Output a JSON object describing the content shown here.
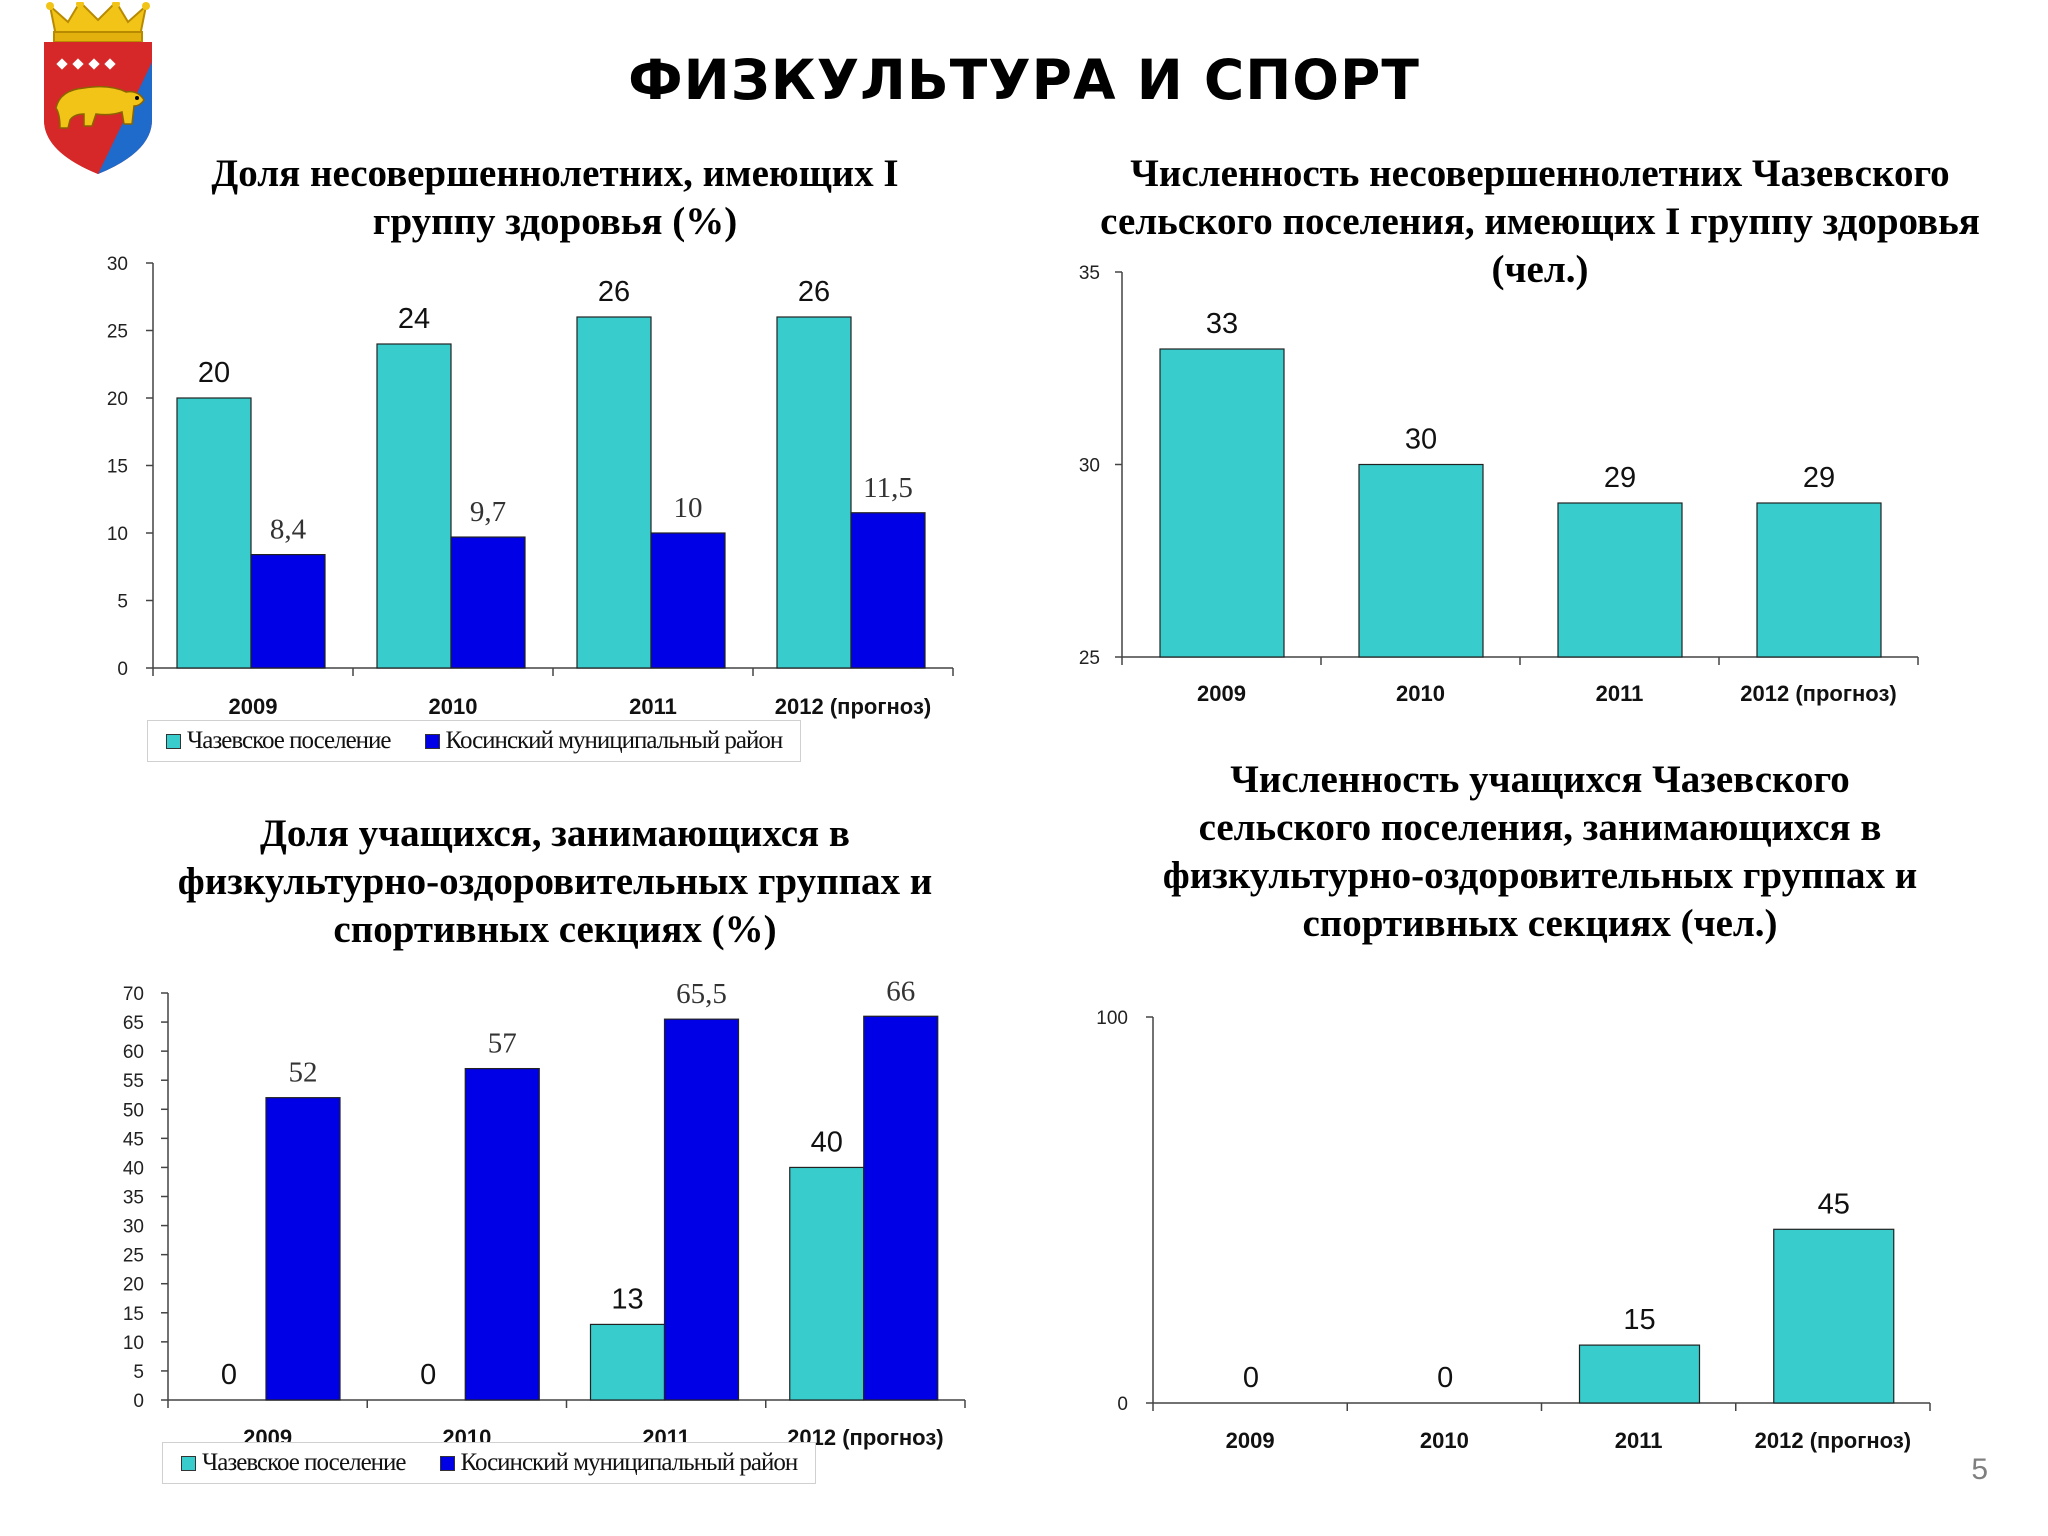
{
  "slide": {
    "title": "ФИЗКУЛЬТУРА И СПОРТ",
    "page_number": "5",
    "emblem_icon": "coat-of-arms-bear-icon"
  },
  "colors": {
    "teal": "#38CCCC",
    "blue": "#0000E6",
    "emblem_red": "#D62828",
    "emblem_blue": "#1E6BCB",
    "emblem_gold": "#F2C418"
  },
  "chart_data": [
    {
      "id": "chart1",
      "type": "bar",
      "title_lines": [
        "Доля несовершеннолетних, имеющих I",
        "группу здоровья (%)"
      ],
      "categories": [
        "2009",
        "2010",
        "2011",
        "2012 (прогноз)"
      ],
      "ylim": [
        0,
        30
      ],
      "yticks": [
        0,
        5,
        10,
        15,
        20,
        25,
        30
      ],
      "grid": false,
      "legend": "bottom",
      "series": [
        {
          "name": "Чазевское поселение",
          "color": "#38CCCC",
          "values": [
            20,
            24,
            26,
            26
          ],
          "labels": [
            "20",
            "24",
            "26",
            "26"
          ],
          "label_font": "sans"
        },
        {
          "name": "Косинский муниципальный район",
          "color": "#0000E6",
          "values": [
            8.4,
            9.7,
            10,
            11.5
          ],
          "labels": [
            "8,4",
            "9,7",
            "10",
            "11,5"
          ],
          "label_font": "serif"
        }
      ]
    },
    {
      "id": "chart2",
      "type": "bar",
      "title_lines": [
        "Численность несовершеннолетних Чазевского",
        "сельского поселения, имеющих I группу здоровья",
        "(чел.)"
      ],
      "categories": [
        "2009",
        "2010",
        "2011",
        "2012 (прогноз)"
      ],
      "ylim": [
        25,
        35
      ],
      "yticks": [
        25,
        30,
        35
      ],
      "grid": false,
      "legend": "none",
      "series": [
        {
          "name": "",
          "color": "#38CCCC",
          "values": [
            33,
            30,
            29,
            29
          ],
          "labels": [
            "33",
            "30",
            "29",
            "29"
          ],
          "label_font": "sans"
        }
      ]
    },
    {
      "id": "chart3",
      "type": "bar",
      "title_lines": [
        "Доля учащихся, занимающихся в",
        "физкультурно-оздоровительных группах и",
        "спортивных секциях (%)"
      ],
      "categories": [
        "2009",
        "2010",
        "2011",
        "2012 (прогноз)"
      ],
      "ylim": [
        0,
        70
      ],
      "yticks": [
        0,
        5,
        10,
        15,
        20,
        25,
        30,
        35,
        40,
        45,
        50,
        55,
        60,
        65,
        70
      ],
      "grid": false,
      "legend": "bottom",
      "series": [
        {
          "name": "Чазевское поселение",
          "color": "#38CCCC",
          "values": [
            0,
            0,
            13,
            40
          ],
          "labels": [
            "0",
            "0",
            "13",
            "40"
          ],
          "label_font": "sans"
        },
        {
          "name": "Косинский муниципальный район",
          "color": "#0000E6",
          "values": [
            52,
            57,
            65.5,
            66
          ],
          "labels": [
            "52",
            "57",
            "65,5",
            "66"
          ],
          "label_font": "serif"
        }
      ]
    },
    {
      "id": "chart4",
      "type": "bar",
      "title_lines": [
        "Численность учащихся Чазевского",
        "сельского поселения, занимающихся в",
        "физкультурно-оздоровительных группах и",
        "спортивных секциях (чел.)"
      ],
      "categories": [
        "2009",
        "2010",
        "2011",
        "2012 (прогноз)"
      ],
      "ylim": [
        0,
        100
      ],
      "yticks": [
        0,
        100
      ],
      "grid": false,
      "legend": "none",
      "series": [
        {
          "name": "",
          "color": "#38CCCC",
          "values": [
            0,
            0,
            15,
            45
          ],
          "labels": [
            "0",
            "0",
            "15",
            "45"
          ],
          "label_font": "sans"
        }
      ]
    }
  ]
}
